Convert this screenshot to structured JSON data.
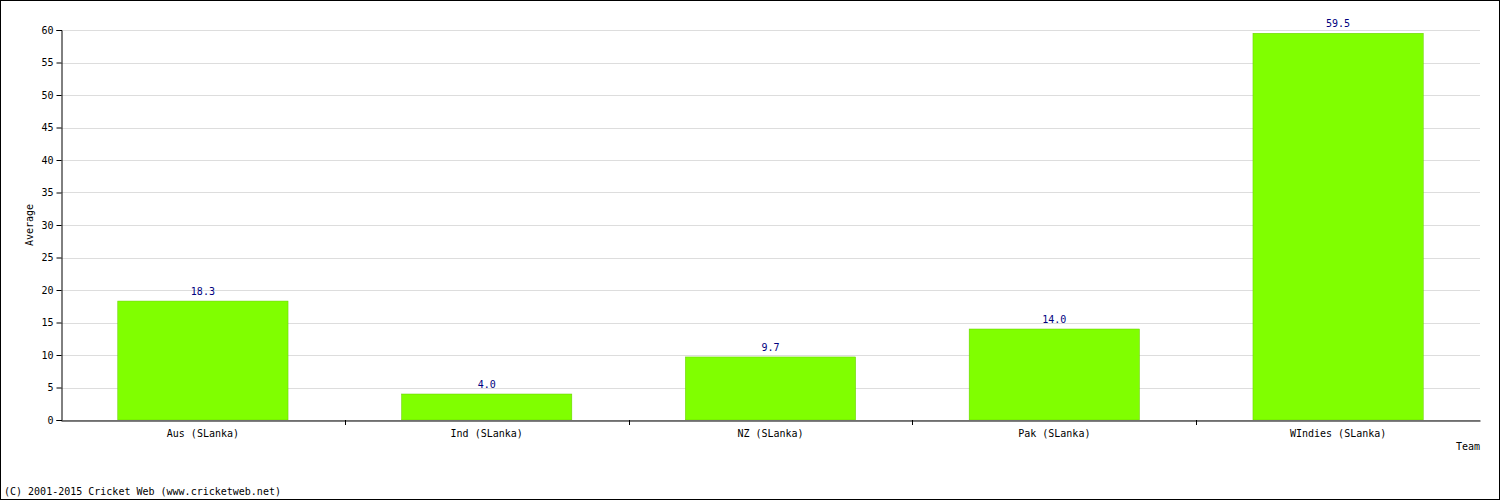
{
  "chart_data": {
    "type": "bar",
    "categories": [
      "Aus (SLanka)",
      "Ind (SLanka)",
      "NZ (SLanka)",
      "Pak (SLanka)",
      "WIndies (SLanka)"
    ],
    "values": [
      18.3,
      4.0,
      9.7,
      14.0,
      59.5
    ],
    "value_labels": [
      "18.3",
      "4.0",
      "9.7",
      "14.0",
      "59.5"
    ],
    "data_labels": true,
    "color": "#80ff00",
    "x_label": "Team",
    "y_label": "Average",
    "ylim": [
      0,
      60
    ],
    "yticks": [
      0,
      5,
      10,
      15,
      20,
      25,
      30,
      35,
      40,
      45,
      50,
      55,
      60
    ],
    "grid": true,
    "annotations": [
      "(C) 2001-2015 Cricket Web (www.cricketweb.net)"
    ]
  }
}
